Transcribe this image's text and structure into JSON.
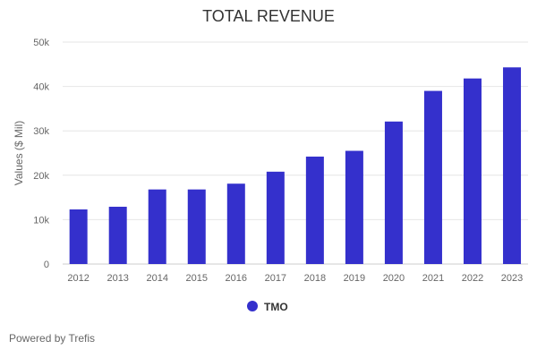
{
  "chart_data": {
    "type": "bar",
    "title": "TOTAL REVENUE",
    "xlabel": "",
    "ylabel": "Values ($ Mil)",
    "categories": [
      "2012",
      "2013",
      "2014",
      "2015",
      "2016",
      "2017",
      "2018",
      "2019",
      "2020",
      "2021",
      "2022",
      "2023"
    ],
    "series": [
      {
        "name": "TMO",
        "values": [
          12.3,
          12.9,
          16.8,
          16.8,
          18.1,
          20.8,
          24.2,
          25.5,
          32.1,
          39.0,
          41.8,
          44.3
        ],
        "color": "#3430cc"
      }
    ],
    "ylim": [
      0,
      50
    ],
    "yticks": [
      0,
      10,
      20,
      30,
      40,
      50
    ],
    "ytick_labels": [
      "0",
      "10k",
      "20k",
      "30k",
      "40k",
      "50k"
    ],
    "grid": true,
    "legend": "bottom-center"
  },
  "footer": {
    "credit": "Powered by Trefis"
  }
}
